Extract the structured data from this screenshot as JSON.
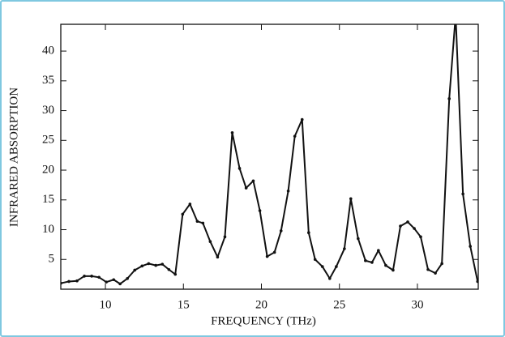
{
  "chart_data": {
    "type": "line",
    "x_label": "FREQUENCY (THz)",
    "y_label": "INFRARED ABSORPTION",
    "x": [
      7.14,
      7.66,
      8.18,
      8.65,
      9.12,
      9.59,
      10.06,
      10.53,
      10.94,
      11.41,
      11.88,
      12.35,
      12.77,
      13.23,
      13.65,
      14.07,
      14.48,
      14.95,
      15.42,
      15.89,
      16.25,
      16.72,
      17.19,
      17.66,
      18.13,
      18.6,
      19.02,
      19.48,
      19.9,
      20.37,
      20.84,
      21.26,
      21.72,
      22.14,
      22.61,
      23.03,
      23.44,
      23.91,
      24.38,
      24.8,
      25.32,
      25.73,
      26.2,
      26.67,
      27.09,
      27.5,
      27.97,
      28.44,
      28.91,
      29.38,
      29.8,
      30.21,
      30.68,
      31.15,
      31.57,
      32.04,
      32.45,
      32.92,
      33.39,
      33.86
    ],
    "series": [
      {
        "name": "absorption",
        "color": "#111111",
        "values": [
          1.0,
          1.3,
          1.4,
          2.2,
          2.2,
          2.0,
          1.2,
          1.6,
          0.9,
          1.8,
          3.2,
          3.9,
          4.3,
          4.0,
          4.2,
          3.3,
          2.5,
          12.6,
          14.3,
          11.4,
          11.1,
          8.0,
          5.4,
          8.8,
          26.3,
          20.3,
          17.0,
          18.2,
          13.2,
          5.5,
          6.2,
          9.8,
          16.5,
          25.7,
          28.5,
          9.5,
          5.0,
          3.8,
          1.8,
          3.8,
          6.8,
          15.2,
          8.5,
          4.8,
          4.5,
          6.5,
          4.0,
          3.2,
          10.6,
          11.3,
          10.2,
          8.8,
          3.3,
          2.7,
          4.3,
          32.0,
          46.0,
          16.0,
          7.2,
          1.3
        ]
      }
    ],
    "xlim": [
      7.14,
      33.9
    ],
    "ylim": [
      0,
      44.5
    ],
    "xticks": [
      10,
      15,
      20,
      25,
      30
    ],
    "yticks": [
      5,
      10,
      15,
      20,
      25,
      30,
      35,
      40
    ]
  }
}
